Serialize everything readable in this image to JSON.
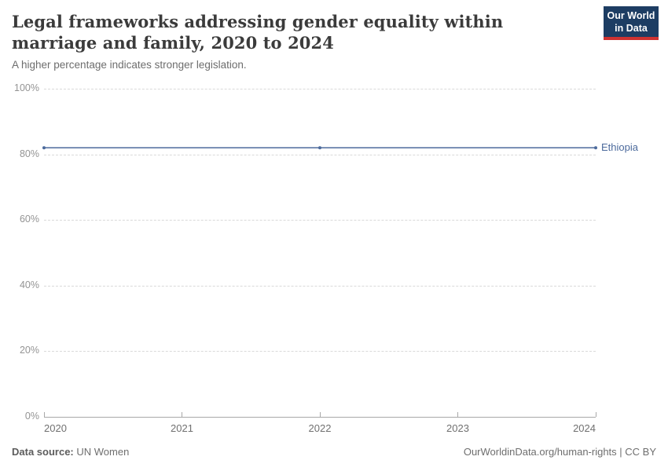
{
  "header": {
    "title": "Legal frameworks addressing gender equality within marriage and family, 2020 to 2024",
    "subtitle": "A higher percentage indicates stronger legislation.",
    "logo": {
      "line1": "Our World",
      "line2": "in Data",
      "bg_color": "#1d3d63",
      "accent_color": "#cf3231"
    }
  },
  "chart_data": {
    "type": "line",
    "title": "Legal frameworks addressing gender equality within marriage and family, 2020 to 2024",
    "subtitle": "A higher percentage indicates stronger legislation.",
    "x": [
      2020,
      2021,
      2022,
      2023,
      2024
    ],
    "xtick_labels": [
      "2020",
      "2021",
      "2022",
      "2023",
      "2024"
    ],
    "series": [
      {
        "name": "Ethiopia",
        "values": [
          82,
          82,
          82,
          82,
          82
        ],
        "color": "#4c6a9c",
        "marker_x": [
          2020,
          2022,
          2024
        ]
      }
    ],
    "xlabel": "",
    "ylabel": "",
    "ylim": [
      0,
      100
    ],
    "yticks": [
      0,
      20,
      40,
      60,
      80,
      100
    ],
    "ytick_labels": [
      "0%",
      "20%",
      "40%",
      "60%",
      "80%",
      "100%"
    ],
    "grid": "horizontal-dashed",
    "legend_position": "end-of-line-label"
  },
  "footer": {
    "source_label": "Data source:",
    "source_value": "UN Women",
    "credit": "OurWorldinData.org/human-rights | CC BY"
  }
}
